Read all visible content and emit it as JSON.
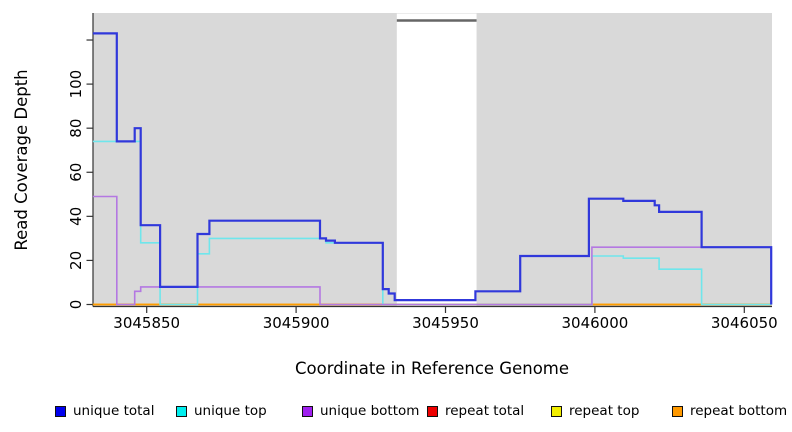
{
  "figure": {
    "x_axis_title": "Coordinate in Reference Genome",
    "y_axis_title": "Read Coverage Depth"
  },
  "legend": {
    "items": [
      {
        "label": "unique total",
        "color": "#0000ee"
      },
      {
        "label": "unique top",
        "color": "#00eeee"
      },
      {
        "label": "unique bottom",
        "color": "#a020f0"
      },
      {
        "label": "repeat total",
        "color": "#ee0000"
      },
      {
        "label": "repeat top",
        "color": "#f2ee00"
      },
      {
        "label": "repeat bottom",
        "color": "#ff9900"
      }
    ]
  },
  "chart_data": {
    "type": "line",
    "style": "step coverage plot (R-style)",
    "title": "",
    "xlabel": "Coordinate in Reference Genome",
    "ylabel": "Read Coverage Depth",
    "xlim": [
      3045832,
      3046059
    ],
    "ylim": [
      0,
      132
    ],
    "grid": false,
    "plot_background": "#d9d9d9",
    "legend_position": "bottom",
    "x_ticks": [
      3045850,
      3045900,
      3045950,
      3046000,
      3046050
    ],
    "y_ticks": [
      {
        "value": 0,
        "label": "0"
      },
      {
        "value": 20,
        "label": "20"
      },
      {
        "value": 40,
        "label": "40"
      },
      {
        "value": 60,
        "label": "60"
      },
      {
        "value": 80,
        "label": "80"
      },
      {
        "value": 100,
        "label": "100"
      },
      {
        "value": 120,
        "label": ""
      }
    ],
    "masked_region": {
      "x_start": 3045933.7,
      "x_end": 3045960.4,
      "cap_color": "#666666"
    },
    "series": [
      {
        "name": "repeat-total",
        "legend_label": "repeat total",
        "color": "#e23b3b",
        "line_width": 1.4,
        "points": [
          [
            3045832,
            0
          ],
          [
            3046059,
            0
          ]
        ]
      },
      {
        "name": "repeat-top",
        "legend_label": "repeat top",
        "color": "#f5e626",
        "line_width": 1.4,
        "points": [
          [
            3045832,
            0
          ],
          [
            3046059,
            0
          ]
        ]
      },
      {
        "name": "repeat-bottom",
        "legend_label": "repeat bottom",
        "color": "#ff9d00",
        "line_width": 1.8,
        "points": [
          [
            3045832,
            0
          ],
          [
            3046059,
            0
          ]
        ]
      },
      {
        "name": "unique-top",
        "legend_label": "unique top",
        "color": "#6fe6ec",
        "line_width": 1.6,
        "points": [
          [
            3045832,
            74
          ],
          [
            3045848,
            28
          ],
          [
            3045854.5,
            0
          ],
          [
            3045867,
            23
          ],
          [
            3045871,
            30
          ],
          [
            3045910,
            28
          ],
          [
            3045929,
            0
          ],
          [
            3045999,
            22
          ],
          [
            3046009.5,
            21
          ],
          [
            3046021.5,
            16
          ],
          [
            3046035.7,
            0
          ],
          [
            3046059,
            0
          ]
        ]
      },
      {
        "name": "unique-bottom",
        "legend_label": "unique bottom",
        "color": "#b478e2",
        "line_width": 1.6,
        "points": [
          [
            3045832,
            49
          ],
          [
            3045840,
            0
          ],
          [
            3045846,
            6
          ],
          [
            3045848,
            8
          ],
          [
            3045908,
            0
          ],
          [
            3045999,
            26
          ],
          [
            3046059,
            0
          ]
        ]
      },
      {
        "name": "unique-total",
        "legend_label": "unique total",
        "color": "#3038db",
        "line_width": 2.2,
        "points": [
          [
            3045832,
            123
          ],
          [
            3045840,
            74
          ],
          [
            3045846,
            80
          ],
          [
            3045848,
            36
          ],
          [
            3045854.5,
            8
          ],
          [
            3045867,
            32
          ],
          [
            3045871,
            38
          ],
          [
            3045908,
            30
          ],
          [
            3045910,
            29
          ],
          [
            3045913,
            28
          ],
          [
            3045929,
            7
          ],
          [
            3045931,
            5
          ],
          [
            3045933,
            2
          ],
          [
            3045960,
            6
          ],
          [
            3045975,
            22
          ],
          [
            3045998,
            48
          ],
          [
            3046009.5,
            47
          ],
          [
            3046020,
            45
          ],
          [
            3046021.5,
            42
          ],
          [
            3046035.7,
            26
          ],
          [
            3046059,
            0
          ]
        ]
      }
    ]
  }
}
